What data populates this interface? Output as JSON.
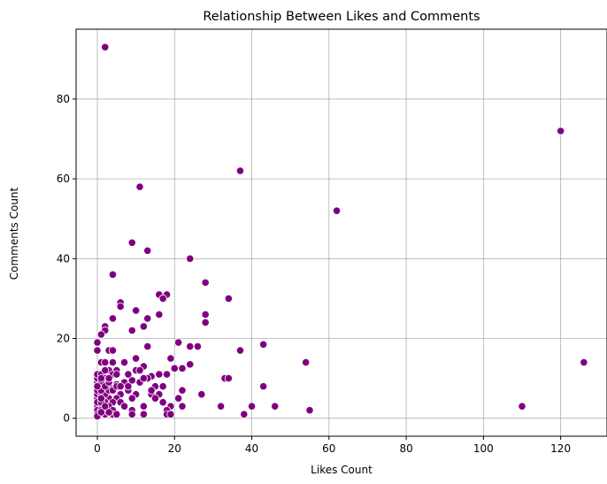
{
  "chart_data": {
    "type": "scatter",
    "title": "Relationship Between Likes and Comments",
    "xlabel": "Likes Count",
    "ylabel": "Comments Count",
    "xlim": [
      -5.5,
      132
    ],
    "ylim": [
      -4.5,
      97.5
    ],
    "xticks": [
      0,
      20,
      40,
      60,
      80,
      100,
      120
    ],
    "yticks": [
      0,
      20,
      40,
      60,
      80
    ],
    "grid": true,
    "marker_color": "#800080",
    "marker_edge": "#ffffff",
    "points": [
      [
        2,
        93
      ],
      [
        120,
        72
      ],
      [
        37,
        62
      ],
      [
        11,
        58
      ],
      [
        62,
        52
      ],
      [
        9,
        44
      ],
      [
        13,
        42
      ],
      [
        24,
        40
      ],
      [
        4,
        36
      ],
      [
        28,
        34
      ],
      [
        16,
        31
      ],
      [
        18,
        31
      ],
      [
        17,
        30
      ],
      [
        34,
        30
      ],
      [
        6,
        29
      ],
      [
        6,
        28
      ],
      [
        10,
        27
      ],
      [
        16,
        26
      ],
      [
        28,
        26
      ],
      [
        4,
        25
      ],
      [
        13,
        25
      ],
      [
        28,
        24
      ],
      [
        12,
        23
      ],
      [
        2,
        23
      ],
      [
        9,
        22
      ],
      [
        2,
        22
      ],
      [
        1,
        21
      ],
      [
        0,
        19
      ],
      [
        21,
        19
      ],
      [
        0,
        17
      ],
      [
        3,
        17
      ],
      [
        4,
        17
      ],
      [
        37,
        17
      ],
      [
        43,
        18.5
      ],
      [
        24,
        18
      ],
      [
        26,
        18
      ],
      [
        13,
        18
      ],
      [
        19,
        15
      ],
      [
        10,
        15
      ],
      [
        1,
        14
      ],
      [
        2,
        14
      ],
      [
        4,
        14
      ],
      [
        7,
        14
      ],
      [
        12,
        13
      ],
      [
        24,
        13.5
      ],
      [
        54,
        14
      ],
      [
        126,
        14
      ],
      [
        20,
        12.5
      ],
      [
        22,
        12.5
      ],
      [
        10,
        12
      ],
      [
        11,
        12
      ],
      [
        5,
        12
      ],
      [
        3,
        12
      ],
      [
        18,
        11
      ],
      [
        16,
        11
      ],
      [
        14,
        10.5
      ],
      [
        13,
        10
      ],
      [
        33,
        10
      ],
      [
        34,
        10
      ],
      [
        9,
        9.5
      ],
      [
        7,
        9
      ],
      [
        5,
        8.5
      ],
      [
        3,
        8
      ],
      [
        1,
        8
      ],
      [
        0,
        9
      ],
      [
        0,
        10
      ],
      [
        0,
        11
      ],
      [
        1,
        11
      ],
      [
        2,
        10
      ],
      [
        4,
        11
      ],
      [
        5,
        11
      ],
      [
        8,
        11
      ],
      [
        15,
        8
      ],
      [
        17,
        8
      ],
      [
        43,
        8
      ],
      [
        22,
        7
      ],
      [
        8,
        7
      ],
      [
        6,
        6
      ],
      [
        10,
        6
      ],
      [
        14,
        6
      ],
      [
        16,
        6
      ],
      [
        27,
        6
      ],
      [
        3,
        5
      ],
      [
        5,
        5
      ],
      [
        9,
        5
      ],
      [
        15,
        5
      ],
      [
        21,
        5
      ],
      [
        2,
        4
      ],
      [
        4,
        4
      ],
      [
        6,
        4
      ],
      [
        17,
        4
      ],
      [
        0,
        3
      ],
      [
        1,
        3
      ],
      [
        3,
        3
      ],
      [
        7,
        3
      ],
      [
        12,
        3
      ],
      [
        19,
        3
      ],
      [
        22,
        3
      ],
      [
        32,
        3
      ],
      [
        40,
        3
      ],
      [
        46,
        3
      ],
      [
        110,
        3
      ],
      [
        0,
        2
      ],
      [
        1,
        2
      ],
      [
        4,
        2
      ],
      [
        9,
        2
      ],
      [
        18,
        2
      ],
      [
        55,
        2
      ],
      [
        0,
        1
      ],
      [
        2,
        1
      ],
      [
        4,
        1
      ],
      [
        5,
        1
      ],
      [
        9,
        1
      ],
      [
        12,
        1
      ],
      [
        18,
        1
      ],
      [
        19,
        1
      ],
      [
        38,
        1
      ],
      [
        0,
        0.5
      ],
      [
        1,
        1.5
      ],
      [
        3,
        1.5
      ],
      [
        0,
        5
      ],
      [
        0,
        6
      ],
      [
        1,
        6
      ],
      [
        2,
        6
      ],
      [
        0,
        7
      ],
      [
        1,
        7
      ],
      [
        3,
        7
      ],
      [
        0,
        4
      ],
      [
        1,
        4
      ],
      [
        2,
        3
      ],
      [
        1,
        5
      ],
      [
        1,
        9
      ],
      [
        2,
        8
      ],
      [
        3,
        9
      ],
      [
        4,
        7
      ],
      [
        5,
        8
      ],
      [
        6,
        8
      ],
      [
        8,
        8
      ],
      [
        11,
        9
      ],
      [
        12,
        10
      ],
      [
        14,
        7
      ],
      [
        1,
        10
      ],
      [
        0,
        8
      ],
      [
        2,
        12
      ],
      [
        3,
        10
      ]
    ]
  }
}
